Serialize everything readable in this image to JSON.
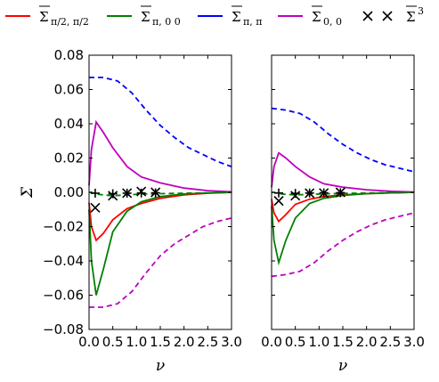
{
  "chart_data": [
    {
      "type": "line",
      "panel": "left",
      "xlabel": "ν",
      "ylabel": "Σ",
      "xlim": [
        0,
        3.0
      ],
      "ylim": [
        -0.08,
        0.08
      ],
      "xticks": [
        0,
        0.5,
        1.0,
        1.5,
        2.0,
        2.5,
        3.0
      ],
      "xtick_labels": [
        "0.0",
        "0.5",
        "1.0",
        "1.5",
        "2.0",
        "2.5",
        "3.0"
      ],
      "yticks": [
        -0.08,
        -0.06,
        -0.04,
        -0.02,
        0,
        0.02,
        0.04,
        0.06,
        0.08
      ],
      "ytick_labels": [
        "−0.08",
        "−0.06",
        "−0.04",
        "−0.02",
        "0.00",
        "0.02",
        "0.04",
        "0.06",
        "0.08"
      ],
      "series": [
        {
          "key": "s_half",
          "style": "solid",
          "x": [
            0,
            0.05,
            0.15,
            0.3,
            0.5,
            0.8,
            1.1,
            1.5,
            2.0,
            2.5,
            3.0
          ],
          "y": [
            -0.006,
            -0.02,
            -0.028,
            -0.024,
            -0.016,
            -0.0095,
            -0.0065,
            -0.0035,
            -0.0015,
            -0.0005,
            0
          ]
        },
        {
          "key": "s_pi0",
          "style": "solid",
          "x": [
            0,
            0.05,
            0.15,
            0.3,
            0.5,
            0.8,
            1.1,
            1.5,
            2.0,
            2.5,
            3.0
          ],
          "y": [
            -0.01,
            -0.04,
            -0.06,
            -0.045,
            -0.023,
            -0.011,
            -0.0055,
            -0.0025,
            -0.001,
            -0.0003,
            0
          ]
        },
        {
          "key": "s_pipi",
          "style": "dashed",
          "x": [
            0,
            0.3,
            0.6,
            0.9,
            1.2,
            1.5,
            1.8,
            2.1,
            2.4,
            2.7,
            3.0
          ],
          "y": [
            0.067,
            0.067,
            0.065,
            0.058,
            0.048,
            0.039,
            0.032,
            0.026,
            0.022,
            0.018,
            0.015
          ]
        },
        {
          "key": "s_pipi_neg",
          "style": "dashed",
          "x": [
            0,
            0.3,
            0.6,
            0.9,
            1.2,
            1.5,
            1.8,
            2.1,
            2.4,
            2.7,
            3.0
          ],
          "y": [
            -0.067,
            -0.067,
            -0.065,
            -0.058,
            -0.047,
            -0.037,
            -0.03,
            -0.025,
            -0.02,
            -0.017,
            -0.015
          ]
        },
        {
          "key": "s_00",
          "style": "solid",
          "x": [
            0,
            0.05,
            0.15,
            0.3,
            0.5,
            0.8,
            1.1,
            1.5,
            2.0,
            2.5,
            3.0
          ],
          "y": [
            0.004,
            0.025,
            0.041,
            0.035,
            0.026,
            0.015,
            0.009,
            0.0055,
            0.0025,
            0.001,
            0.0003
          ]
        },
        {
          "key": "s_00_neg",
          "style": "dashed",
          "x": [
            0,
            0.05,
            0.15,
            0.3,
            0.5,
            0.8,
            1.1,
            1.5,
            2.0,
            2.5,
            3.0
          ],
          "y": [
            0,
            0,
            -0.001,
            -0.0015,
            -0.002,
            -0.0015,
            -0.001,
            -0.0008,
            -0.0005,
            -0.0003,
            0
          ]
        },
        {
          "key": "s_cross",
          "style": "markers",
          "x": [
            0.13,
            0.5,
            0.8,
            1.1,
            1.4
          ],
          "y": [
            -0.009,
            -0.002,
            -0.0005,
            0.0005,
            0.0
          ]
        },
        {
          "key": "s_plus",
          "style": "markers",
          "x": [
            0.13,
            0.5,
            0.8,
            1.1,
            1.4
          ],
          "y": [
            -0.0005,
            -0.0008,
            -0.0005,
            -0.0004,
            -0.0003
          ]
        }
      ]
    },
    {
      "type": "line",
      "panel": "right",
      "xlabel": "ν",
      "xlim": [
        0,
        3.0
      ],
      "ylim": [
        -0.08,
        0.08
      ],
      "xticks": [
        0,
        0.5,
        1.0,
        1.5,
        2.0,
        2.5,
        3.0
      ],
      "xtick_labels": [
        "0.0",
        "0.5",
        "1.0",
        "1.5",
        "2.0",
        "2.5",
        "3.0"
      ],
      "series": [
        {
          "key": "s_half",
          "style": "solid",
          "x": [
            0,
            0.05,
            0.15,
            0.3,
            0.5,
            0.8,
            1.1,
            1.5,
            2.0,
            2.5,
            3.0
          ],
          "y": [
            -0.004,
            -0.012,
            -0.017,
            -0.013,
            -0.007,
            -0.004,
            -0.0025,
            -0.0015,
            -0.0008,
            -0.0003,
            0
          ]
        },
        {
          "key": "s_pi0",
          "style": "solid",
          "x": [
            0,
            0.05,
            0.15,
            0.3,
            0.5,
            0.8,
            1.1,
            1.5,
            2.0,
            2.5,
            3.0
          ],
          "y": [
            -0.008,
            -0.028,
            -0.041,
            -0.028,
            -0.015,
            -0.0065,
            -0.0035,
            -0.0018,
            -0.0008,
            -0.0003,
            0
          ]
        },
        {
          "key": "s_pipi",
          "style": "dashed",
          "x": [
            0,
            0.3,
            0.6,
            0.9,
            1.2,
            1.5,
            1.8,
            2.1,
            2.4,
            2.7,
            3.0
          ],
          "y": [
            0.049,
            0.048,
            0.046,
            0.041,
            0.034,
            0.028,
            0.023,
            0.019,
            0.016,
            0.014,
            0.012
          ]
        },
        {
          "key": "s_pipi_neg",
          "style": "dashed",
          "x": [
            0,
            0.3,
            0.6,
            0.9,
            1.2,
            1.5,
            1.8,
            2.1,
            2.4,
            2.7,
            3.0
          ],
          "y": [
            -0.049,
            -0.048,
            -0.046,
            -0.041,
            -0.034,
            -0.028,
            -0.023,
            -0.019,
            -0.016,
            -0.014,
            -0.012
          ]
        },
        {
          "key": "s_00",
          "style": "solid",
          "x": [
            0,
            0.05,
            0.15,
            0.3,
            0.5,
            0.8,
            1.1,
            1.5,
            2.0,
            2.5,
            3.0
          ],
          "y": [
            0.003,
            0.015,
            0.023,
            0.02,
            0.015,
            0.009,
            0.005,
            0.003,
            0.0015,
            0.0006,
            0.0002
          ]
        },
        {
          "key": "s_00_neg",
          "style": "dashed",
          "x": [
            0,
            0.05,
            0.15,
            0.3,
            0.5,
            0.8,
            1.1,
            1.5,
            2.0,
            2.5,
            3.0
          ],
          "y": [
            0,
            0,
            -0.0008,
            -0.0012,
            -0.0015,
            -0.0012,
            -0.0009,
            -0.0006,
            -0.0004,
            -0.0002,
            0
          ]
        },
        {
          "key": "s_cross",
          "style": "markers",
          "x": [
            0.15,
            0.5,
            0.8,
            1.1,
            1.45
          ],
          "y": [
            -0.005,
            -0.002,
            -0.0005,
            -0.0004,
            0.0
          ]
        },
        {
          "key": "s_plus",
          "style": "markers",
          "x": [
            0.15,
            0.5,
            0.8,
            1.1,
            1.45
          ],
          "y": [
            -0.0004,
            -0.0006,
            -0.0004,
            -0.0003,
            -0.0002
          ]
        }
      ]
    }
  ],
  "legend": {
    "placement": "top",
    "items": [
      {
        "key": "s_half",
        "label_main": "Σ",
        "label_sub": "π/2, π/2",
        "color": "#ff0000",
        "marker": "line"
      },
      {
        "key": "s_pi0",
        "label_main": "Σ",
        "label_sub": "π, 0 0",
        "color": "#008000",
        "marker": "line"
      },
      {
        "key": "s_pipi",
        "label_main": "Σ",
        "label_sub": "π, π",
        "color": "#0000ff",
        "marker": "line"
      },
      {
        "key": "s_00",
        "label_main": "Σ",
        "label_sub": "0, 0",
        "color": "#bf00bf",
        "marker": "line"
      },
      {
        "key": "s_cross",
        "label_main": "Σ",
        "label_sup": "3",
        "color": "#000000",
        "marker": "cross"
      }
    ]
  },
  "colors": {
    "s_half": "#ff0000",
    "s_pi0": "#008000",
    "s_pipi": "#0000ff",
    "s_pipi_neg": "#bf00bf",
    "s_00": "#bf00bf",
    "s_00_neg": "#008000",
    "s_cross": "#000000",
    "s_plus": "#000000"
  }
}
